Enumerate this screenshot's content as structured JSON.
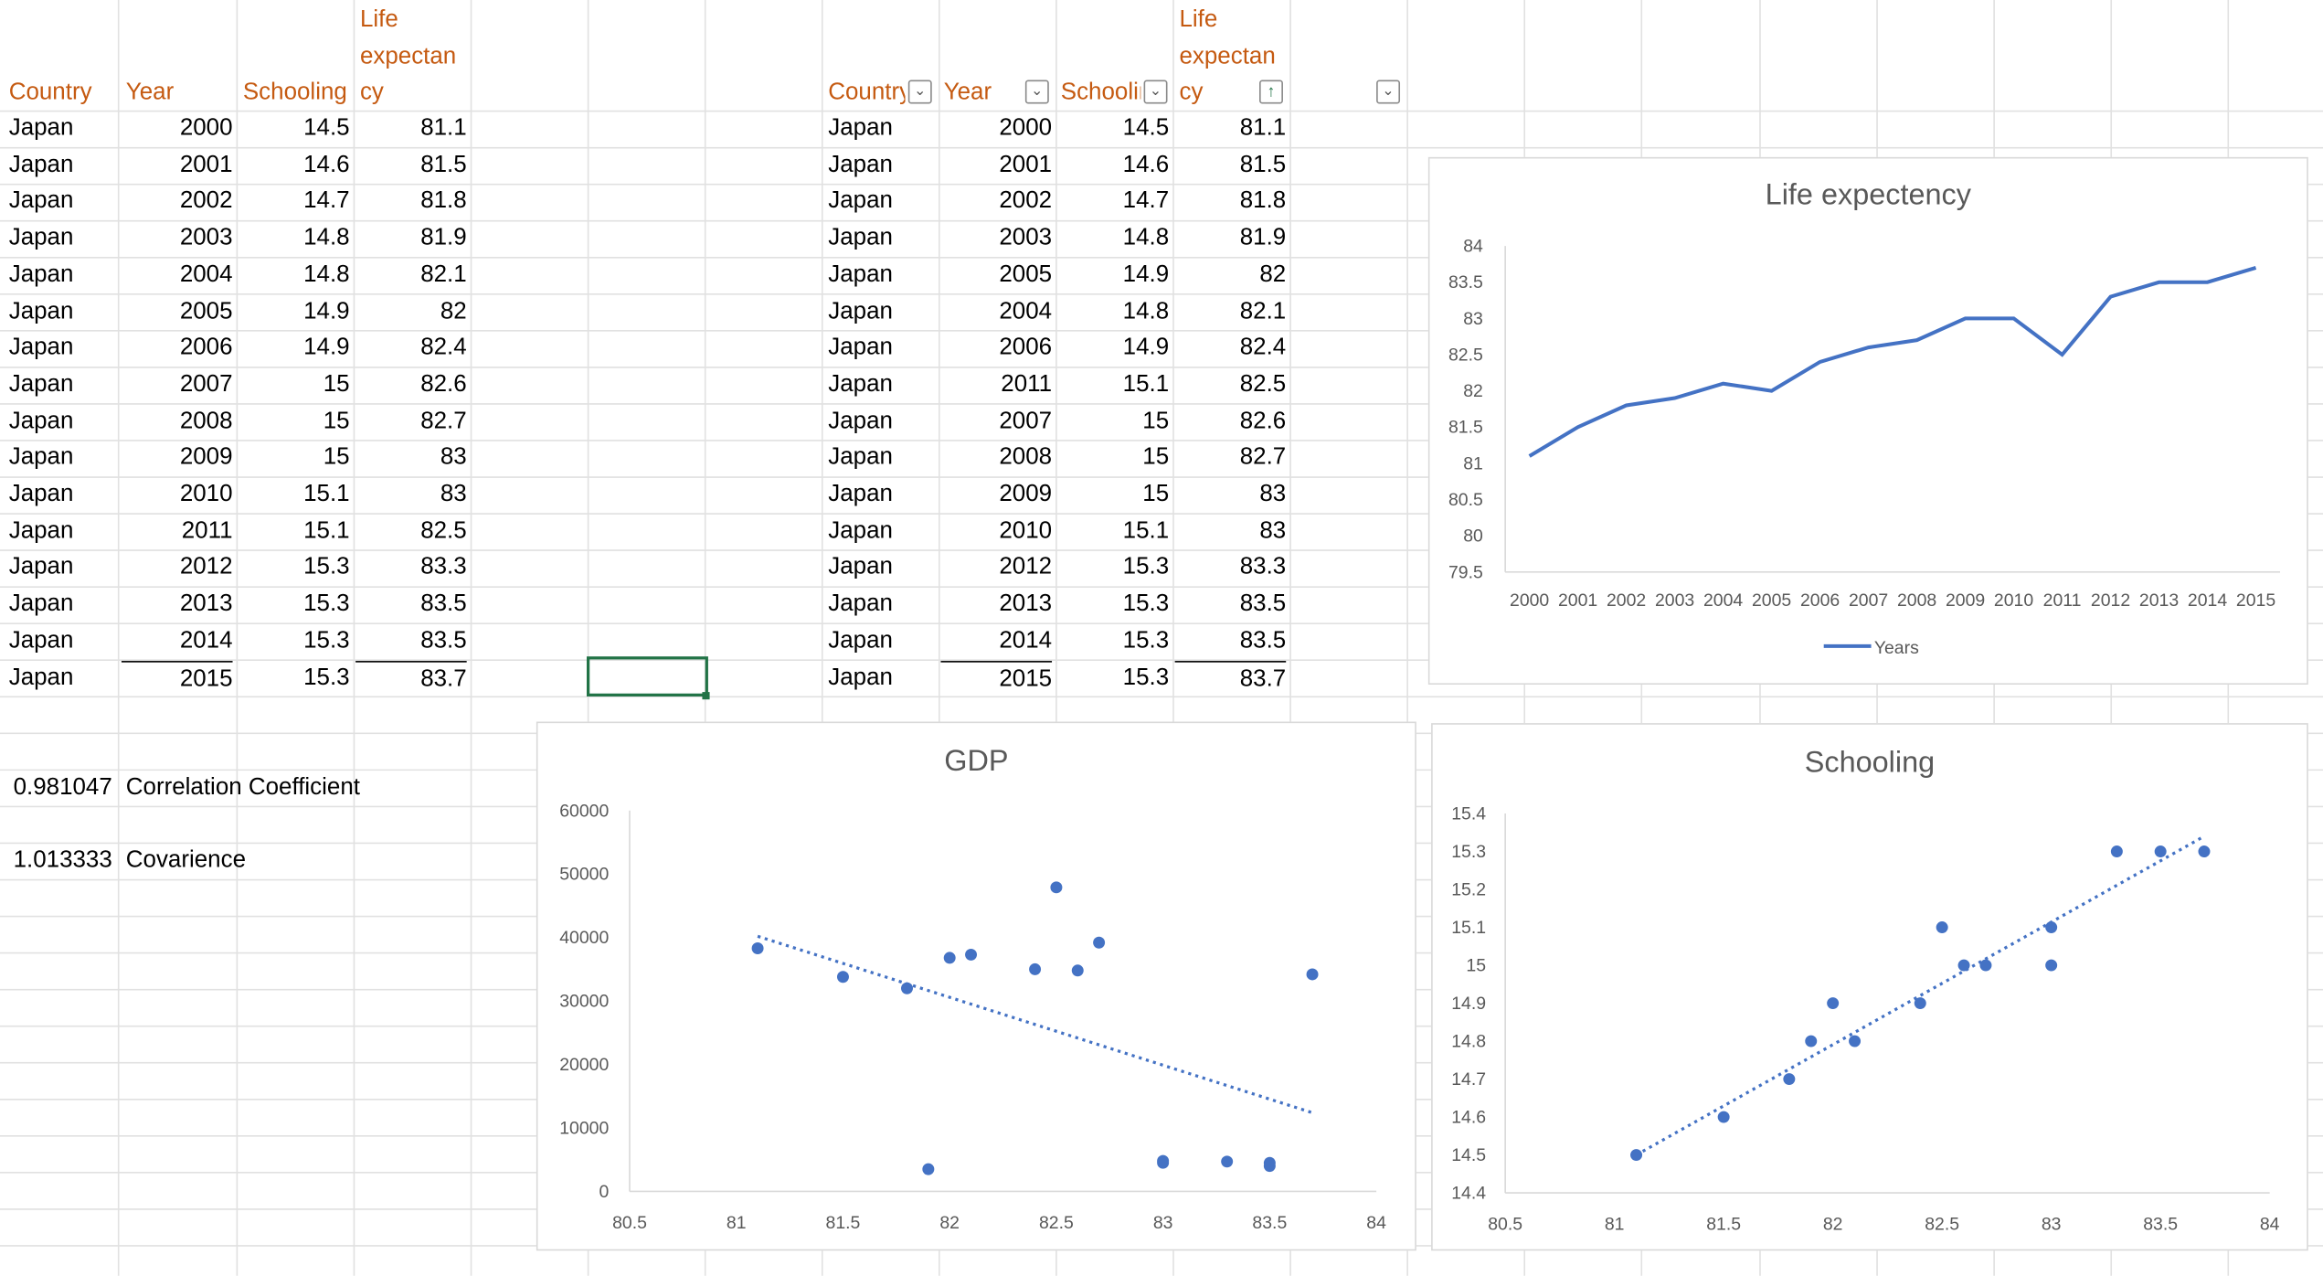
{
  "left_table": {
    "headers": {
      "country": "Country",
      "year": "Year",
      "schooling": "Schooling",
      "life1": "Life",
      "life2": "expectan",
      "life3": "cy"
    },
    "rows": [
      [
        "Japan",
        "2000",
        "14.5",
        "81.1"
      ],
      [
        "Japan",
        "2001",
        "14.6",
        "81.5"
      ],
      [
        "Japan",
        "2002",
        "14.7",
        "81.8"
      ],
      [
        "Japan",
        "2003",
        "14.8",
        "81.9"
      ],
      [
        "Japan",
        "2004",
        "14.8",
        "82.1"
      ],
      [
        "Japan",
        "2005",
        "14.9",
        "82"
      ],
      [
        "Japan",
        "2006",
        "14.9",
        "82.4"
      ],
      [
        "Japan",
        "2007",
        "15",
        "82.6"
      ],
      [
        "Japan",
        "2008",
        "15",
        "82.7"
      ],
      [
        "Japan",
        "2009",
        "15",
        "83"
      ],
      [
        "Japan",
        "2010",
        "15.1",
        "83"
      ],
      [
        "Japan",
        "2011",
        "15.1",
        "82.5"
      ],
      [
        "Japan",
        "2012",
        "15.3",
        "83.3"
      ],
      [
        "Japan",
        "2013",
        "15.3",
        "83.5"
      ],
      [
        "Japan",
        "2014",
        "15.3",
        "83.5"
      ],
      [
        "Japan",
        "2015",
        "15.3",
        "83.7"
      ]
    ]
  },
  "right_table": {
    "headers": {
      "country": "Country",
      "year": "Year",
      "schooling": "Schooling",
      "life1": "Life",
      "life2": "expectan",
      "life3": "cy"
    },
    "rows": [
      [
        "Japan",
        "2000",
        "14.5",
        "81.1"
      ],
      [
        "Japan",
        "2001",
        "14.6",
        "81.5"
      ],
      [
        "Japan",
        "2002",
        "14.7",
        "81.8"
      ],
      [
        "Japan",
        "2003",
        "14.8",
        "81.9"
      ],
      [
        "Japan",
        "2005",
        "14.9",
        "82"
      ],
      [
        "Japan",
        "2004",
        "14.8",
        "82.1"
      ],
      [
        "Japan",
        "2006",
        "14.9",
        "82.4"
      ],
      [
        "Japan",
        "2011",
        "15.1",
        "82.5"
      ],
      [
        "Japan",
        "2007",
        "15",
        "82.6"
      ],
      [
        "Japan",
        "2008",
        "15",
        "82.7"
      ],
      [
        "Japan",
        "2009",
        "15",
        "83"
      ],
      [
        "Japan",
        "2010",
        "15.1",
        "83"
      ],
      [
        "Japan",
        "2012",
        "15.3",
        "83.3"
      ],
      [
        "Japan",
        "2013",
        "15.3",
        "83.5"
      ],
      [
        "Japan",
        "2014",
        "15.3",
        "83.5"
      ],
      [
        "Japan",
        "2015",
        "15.3",
        "83.7"
      ]
    ]
  },
  "stats": {
    "correlation_value": "0.981047",
    "correlation_label": "Correlation Coefficient",
    "covariance_value": "1.013333",
    "covariance_label": "Covarience"
  },
  "colors": {
    "series": "#4472c4",
    "header_text": "#c55a11",
    "selection": "#217346"
  },
  "chart_data": [
    {
      "type": "line",
      "title": "Life expectency",
      "legend": "Years",
      "legend_position": "bottom",
      "categories": [
        "2000",
        "2001",
        "2002",
        "2003",
        "2004",
        "2005",
        "2006",
        "2007",
        "2008",
        "2009",
        "2010",
        "2011",
        "2012",
        "2013",
        "2014",
        "2015"
      ],
      "values": [
        81.1,
        81.5,
        81.8,
        81.9,
        82.1,
        82,
        82.4,
        82.6,
        82.7,
        83,
        83,
        82.5,
        83.3,
        83.5,
        83.5,
        83.7
      ],
      "ylim": [
        79.5,
        84
      ],
      "yticks": [
        "84",
        "83.5",
        "83",
        "82.5",
        "82",
        "81.5",
        "81",
        "80.5",
        "80",
        "79.5"
      ],
      "ytick_values": [
        84,
        83.5,
        83,
        82.5,
        82,
        81.5,
        81,
        80.5,
        80,
        79.5
      ]
    },
    {
      "type": "scatter",
      "title": "GDP",
      "trendline": "linear",
      "x": [
        81.1,
        81.5,
        81.8,
        81.9,
        82,
        82.1,
        82.4,
        82.5,
        82.6,
        82.7,
        83,
        83,
        83.3,
        83.5,
        83.5,
        83.7
      ],
      "y": [
        38300,
        33800,
        32000,
        3500,
        36800,
        37300,
        35000,
        47900,
        34800,
        39200,
        4500,
        4800,
        4700,
        4500,
        4000,
        34200
      ],
      "xlim": [
        80.5,
        84
      ],
      "ylim": [
        0,
        60000
      ],
      "xticks": [
        "80.5",
        "81",
        "81.5",
        "82",
        "82.5",
        "83",
        "83.5",
        "84"
      ],
      "xtick_values": [
        80.5,
        81,
        81.5,
        82,
        82.5,
        83,
        83.5,
        84
      ],
      "yticks": [
        "60000",
        "50000",
        "40000",
        "30000",
        "20000",
        "10000",
        "0"
      ],
      "ytick_values": [
        60000,
        50000,
        40000,
        30000,
        20000,
        10000,
        0
      ],
      "trend": [
        [
          81.1,
          40200
        ],
        [
          83.7,
          12400
        ]
      ]
    },
    {
      "type": "scatter",
      "title": "Schooling",
      "trendline": "linear",
      "x": [
        81.1,
        81.5,
        81.8,
        81.9,
        82,
        82.1,
        82.4,
        82.5,
        82.6,
        82.7,
        83,
        83,
        83.3,
        83.5,
        83.7
      ],
      "y": [
        14.5,
        14.6,
        14.7,
        14.8,
        14.9,
        14.8,
        14.9,
        15.1,
        15,
        15,
        15.1,
        15,
        15.3,
        15.3,
        15.3
      ],
      "xlim": [
        80.5,
        84
      ],
      "ylim": [
        14.4,
        15.4
      ],
      "xticks": [
        "80.5",
        "81",
        "81.5",
        "82",
        "82.5",
        "83",
        "83.5",
        "84"
      ],
      "xtick_values": [
        80.5,
        81,
        81.5,
        82,
        82.5,
        83,
        83.5,
        84
      ],
      "yticks": [
        "15.4",
        "15.3",
        "15.2",
        "15.1",
        "15",
        "14.9",
        "14.8",
        "14.7",
        "14.6",
        "14.5",
        "14.4"
      ],
      "ytick_values": [
        15.4,
        15.3,
        15.2,
        15.1,
        15,
        14.9,
        14.8,
        14.7,
        14.6,
        14.5,
        14.4
      ],
      "trend": [
        [
          81.1,
          14.5
        ],
        [
          83.7,
          15.34
        ]
      ]
    }
  ]
}
